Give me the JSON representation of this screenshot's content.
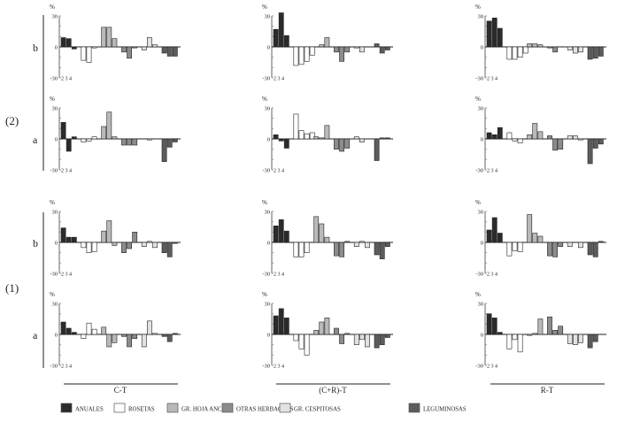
{
  "chart_data": {
    "type": "bar",
    "unit_label": "%",
    "ylim": [
      -30,
      30
    ],
    "y_ticks": [
      "30",
      "0",
      "-30"
    ],
    "x_tick_label": "2 3 4",
    "columns": [
      "C-T",
      "(C+R)-T",
      "R-T"
    ],
    "row_groups": [
      "(2)",
      "(1)"
    ],
    "sub_rows": [
      "b",
      "a"
    ],
    "legend": [
      {
        "name": "ANUALES",
        "color": "#2b2b2b"
      },
      {
        "name": "ROSETAS",
        "color": "#ffffff"
      },
      {
        "name": "GR. HOJA  ANCHA",
        "color": "#b9b9b9"
      },
      {
        "name": "OTRAS HERBACEAS",
        "color": "#8c8c8c"
      },
      {
        "name": "GR. CESPITOSAS",
        "color": "#e2e2e2"
      },
      {
        "name": "LEGUMINOSAS",
        "color": "#5c5c5c"
      }
    ],
    "panels": [
      {
        "row": "(2)",
        "sub": "b",
        "column": "C-T",
        "series": [
          [
            9,
            8,
            -2,
            0
          ],
          [
            -13,
            -15,
            -1,
            0
          ],
          [
            19,
            19,
            8,
            0
          ],
          [
            -5,
            -11,
            -1,
            0
          ],
          [
            -3,
            9,
            2,
            0
          ],
          [
            -6,
            -9,
            -9,
            0
          ]
        ]
      },
      {
        "row": "(2)",
        "sub": "b",
        "column": "(C+R)-T",
        "series": [
          [
            17,
            33,
            11,
            0
          ],
          [
            -18,
            -17,
            -14,
            -8
          ],
          [
            0,
            2,
            9,
            0
          ],
          [
            -5,
            -14,
            -5,
            0
          ],
          [
            -1,
            -5,
            0,
            0
          ],
          [
            3,
            -6,
            -3,
            0
          ]
        ]
      },
      {
        "row": "(2)",
        "sub": "b",
        "column": "R-T",
        "series": [
          [
            25,
            28,
            18,
            0
          ],
          [
            -12,
            -12,
            -10,
            -6
          ],
          [
            3,
            3,
            2,
            0
          ],
          [
            -1,
            -5,
            0,
            0
          ],
          [
            -3,
            -6,
            -5,
            0
          ],
          [
            -12,
            -11,
            -9,
            0
          ]
        ]
      },
      {
        "row": "(2)",
        "sub": "a",
        "column": "C-T",
        "series": [
          [
            16,
            -12,
            2,
            0
          ],
          [
            -3,
            -2,
            2,
            0
          ],
          [
            12,
            26,
            2,
            0
          ],
          [
            -6,
            -6,
            -6,
            0
          ],
          [
            0,
            -1,
            0,
            0
          ],
          [
            -22,
            -8,
            -3,
            0
          ]
        ]
      },
      {
        "row": "(2)",
        "sub": "a",
        "column": "(C+R)-T",
        "series": [
          [
            4,
            -2,
            -9,
            0
          ],
          [
            24,
            8,
            5,
            6
          ],
          [
            2,
            1,
            13,
            0
          ],
          [
            -10,
            -12,
            -9,
            0
          ],
          [
            2,
            -3,
            0,
            0
          ],
          [
            -21,
            1,
            1,
            0
          ]
        ]
      },
      {
        "row": "(2)",
        "sub": "a",
        "column": "R-T",
        "series": [
          [
            6,
            4,
            11,
            0
          ],
          [
            6,
            -2,
            -4,
            0
          ],
          [
            4,
            15,
            7,
            0
          ],
          [
            3,
            -11,
            -10,
            0
          ],
          [
            3,
            3,
            -1,
            0
          ],
          [
            -24,
            -9,
            -5,
            0
          ]
        ]
      },
      {
        "row": "(1)",
        "sub": "b",
        "column": "C-T",
        "series": [
          [
            14,
            5,
            5,
            0
          ],
          [
            -5,
            -10,
            -9,
            0
          ],
          [
            11,
            21,
            -3,
            0
          ],
          [
            -10,
            -6,
            10,
            0
          ],
          [
            -4,
            1,
            -5,
            0
          ],
          [
            -10,
            -14,
            -1,
            0
          ]
        ]
      },
      {
        "row": "(1)",
        "sub": "b",
        "column": "(C+R)-T",
        "series": [
          [
            16,
            22,
            11,
            0
          ],
          [
            -14,
            -14,
            -10,
            0
          ],
          [
            25,
            18,
            5,
            0
          ],
          [
            -13,
            -14,
            1,
            0
          ],
          [
            -4,
            1,
            -5,
            0
          ],
          [
            -12,
            -16,
            -4,
            0
          ]
        ]
      },
      {
        "row": "(1)",
        "sub": "b",
        "column": "R-T",
        "series": [
          [
            12,
            24,
            9,
            0
          ],
          [
            -13,
            -8,
            -9,
            0
          ],
          [
            27,
            9,
            6,
            0
          ],
          [
            -13,
            -14,
            -4,
            0
          ],
          [
            -4,
            0,
            -5,
            0
          ],
          [
            -12,
            -14,
            1,
            0
          ]
        ]
      },
      {
        "row": "(1)",
        "sub": "a",
        "column": "C-T",
        "series": [
          [
            12,
            6,
            2,
            0
          ],
          [
            -4,
            11,
            5,
            0
          ],
          [
            7,
            -12,
            -8,
            0
          ],
          [
            -2,
            -12,
            -4,
            0
          ],
          [
            -12,
            13,
            1,
            0
          ],
          [
            -2,
            -7,
            1,
            0
          ]
        ]
      },
      {
        "row": "(1)",
        "sub": "a",
        "column": "(C+R)-T",
        "series": [
          [
            18,
            25,
            16,
            0
          ],
          [
            -6,
            -14,
            -20,
            0
          ],
          [
            4,
            12,
            16,
            0
          ],
          [
            6,
            -9,
            1,
            0
          ],
          [
            -10,
            -5,
            -12,
            0
          ],
          [
            -13,
            -10,
            -3,
            0
          ]
        ]
      },
      {
        "row": "(1)",
        "sub": "a",
        "column": "R-T",
        "series": [
          [
            20,
            16,
            2,
            0
          ],
          [
            -14,
            -5,
            -17,
            0
          ],
          [
            -1,
            1,
            15,
            0
          ],
          [
            17,
            4,
            8,
            0
          ],
          [
            -9,
            -10,
            -8,
            0
          ],
          [
            -13,
            -7,
            0,
            0
          ]
        ]
      }
    ]
  }
}
